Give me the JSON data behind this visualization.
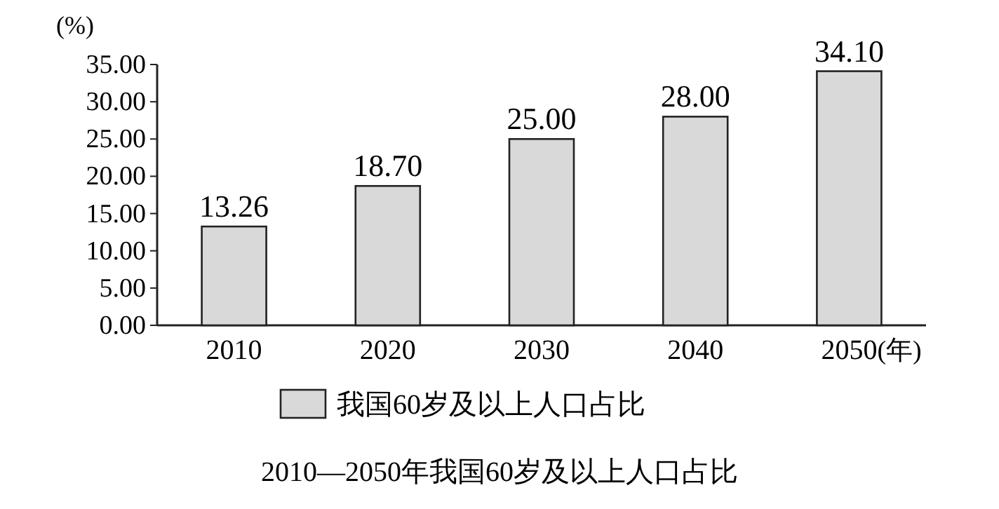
{
  "chart_data": {
    "type": "bar",
    "title": "2010—2050年我国60岁及以上人口占比",
    "xlabel": "(年)",
    "ylabel": "(%)",
    "categories": [
      "2010",
      "2020",
      "2030",
      "2040",
      "2050"
    ],
    "series": [
      {
        "name": "我国60岁及以上人口占比",
        "color": "#d9d9d9",
        "values": [
          13.26,
          18.7,
          25,
          28,
          34.1
        ],
        "value_labels": [
          "13.26",
          "18.70",
          "25.00",
          "28.00",
          "34.10"
        ]
      }
    ],
    "ylim": [
      0,
      35
    ],
    "yticks": [
      {
        "value": 0,
        "label": "0.00"
      },
      {
        "value": 5,
        "label": "5.00"
      },
      {
        "value": 10,
        "label": "10.00"
      },
      {
        "value": 15,
        "label": "15.00"
      },
      {
        "value": 20,
        "label": "20.00"
      },
      {
        "value": 25,
        "label": "25.00"
      },
      {
        "value": 30,
        "label": "30.00"
      },
      {
        "value": 35,
        "label": "35.00"
      }
    ],
    "legend": "bottom"
  }
}
